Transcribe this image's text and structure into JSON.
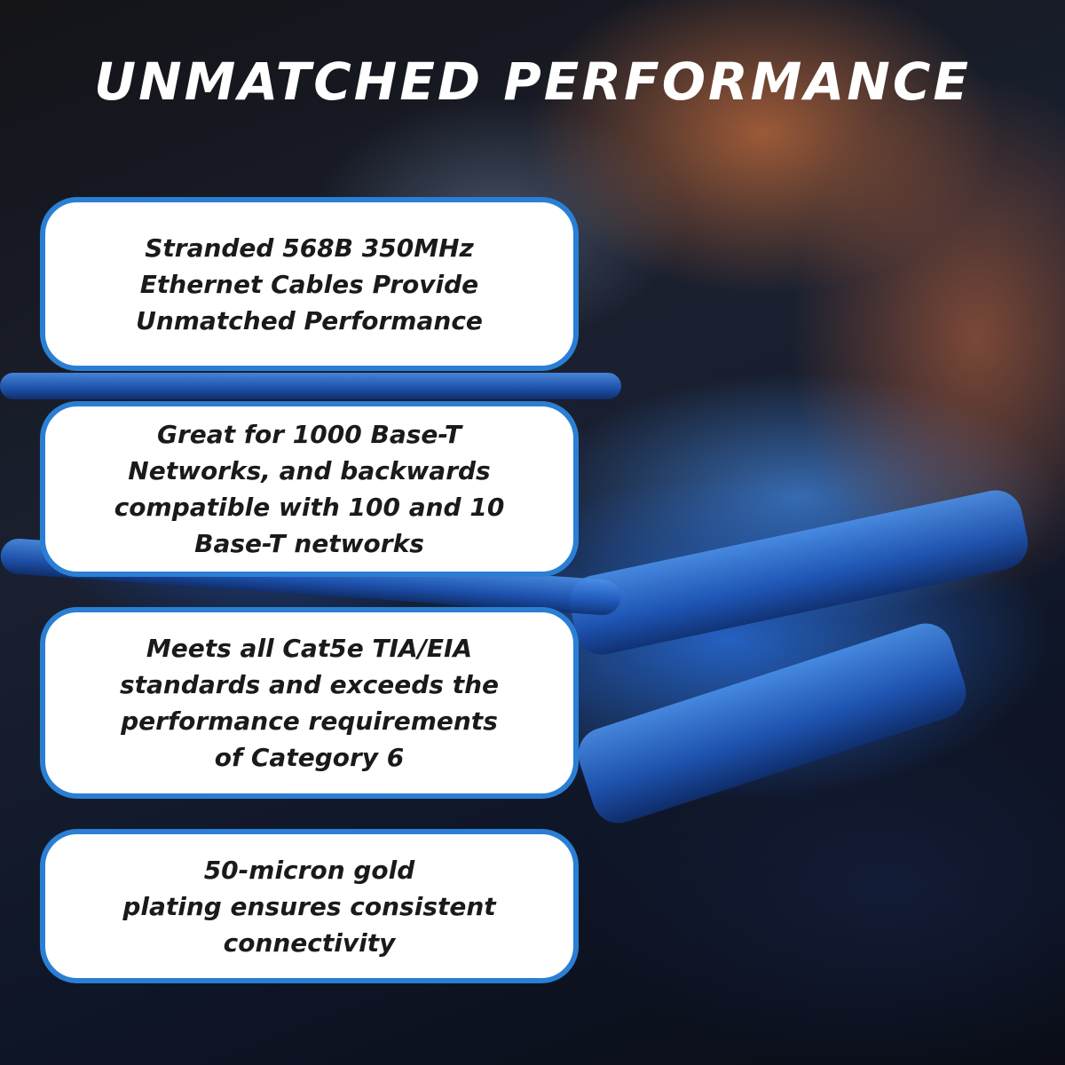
{
  "title": "UNMATCHED PERFORMANCE",
  "features": [
    {
      "text": "Stranded 568B 350MHz\nEthernet Cables Provide\nUnmatched Performance"
    },
    {
      "text": "Great for 1000 Base-T\nNetworks, and backwards\ncompatible with 100 and 10\nBase-T networks"
    },
    {
      "text": "Meets all Cat5e TIA/EIA\nstandards and exceeds the\nperformance requirements\nof Category 6"
    },
    {
      "text": "50-micron gold\nplating ensures consistent\nconnectivity"
    }
  ],
  "colors": {
    "border": "#2a7fd4",
    "title": "#ffffff",
    "text": "#1a1a1a"
  }
}
